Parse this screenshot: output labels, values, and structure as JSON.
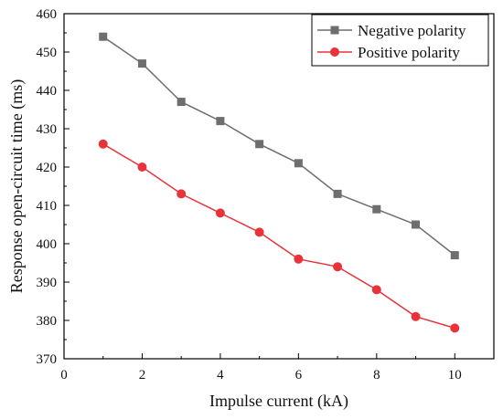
{
  "chart_data": {
    "type": "line",
    "xlabel": "Impulse current (kA)",
    "ylabel": "Response open-circuit time (ms)",
    "xlim": [
      0,
      11
    ],
    "ylim": [
      370,
      460
    ],
    "xticks": [
      0,
      2,
      4,
      6,
      8,
      10
    ],
    "yticks": [
      370,
      380,
      390,
      400,
      410,
      420,
      430,
      440,
      450,
      460
    ],
    "x": [
      1,
      2,
      3,
      4,
      5,
      6,
      7,
      8,
      9,
      10
    ],
    "grid": false,
    "legend_position": "top-right",
    "series": [
      {
        "name": "Negative polarity",
        "marker": "square",
        "line_color": "#6e6e6e",
        "marker_color": "#6e6e6e",
        "values": [
          454,
          447,
          437,
          432,
          426,
          421,
          413,
          409,
          405,
          397
        ]
      },
      {
        "name": "Positive polarity",
        "marker": "circle",
        "line_color": "#e8333a",
        "marker_color": "#e8333a",
        "values": [
          426,
          420,
          413,
          408,
          403,
          396,
          394,
          388,
          381,
          378
        ]
      }
    ]
  }
}
